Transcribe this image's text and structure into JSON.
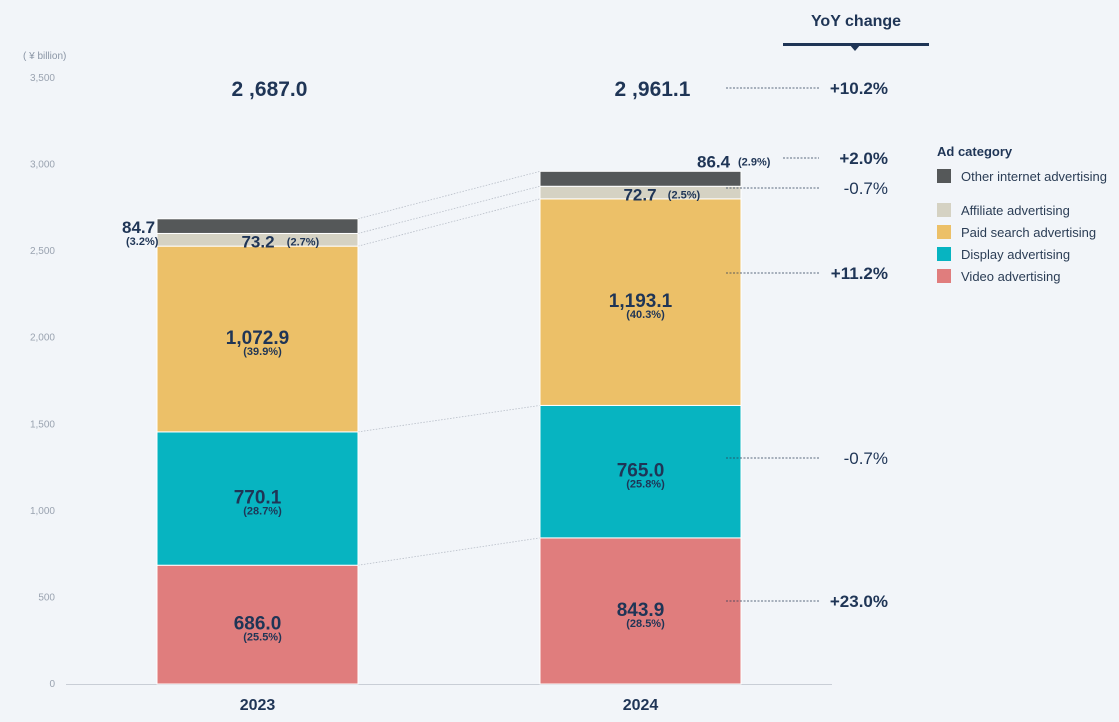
{
  "chart_data": {
    "type": "bar",
    "stacked": true,
    "unit_label": "( ¥ billion)",
    "ylim": [
      0,
      3500
    ],
    "yticks": [
      0,
      500,
      1000,
      1500,
      2000,
      2500,
      3000,
      3500
    ],
    "ytick_labels": [
      "0",
      "500",
      "1,000",
      "1,500",
      "2,000",
      "2,500",
      "3,000",
      "3,500"
    ],
    "categories": [
      "2023",
      "2024"
    ],
    "totals": [
      2687.0,
      2961.1
    ],
    "total_labels": [
      "2 ,687.0",
      "2 ,961.1"
    ],
    "series": [
      {
        "name": "Video advertising",
        "color": "#e07d7d",
        "values": [
          686.0,
          843.9
        ],
        "value_labels": [
          "686.0",
          "843.9"
        ],
        "share_labels": [
          "(25.5%)",
          "(28.5%)"
        ],
        "yoy": "+23.0%",
        "yoy_bold": true
      },
      {
        "name": "Display advertising",
        "color": "#07b4c1",
        "values": [
          770.1,
          765.0
        ],
        "value_labels": [
          "770.1",
          "765.0"
        ],
        "share_labels": [
          "(28.7%)",
          "(25.8%)"
        ],
        "yoy": "-0.7%",
        "yoy_bold": false
      },
      {
        "name": "Paid search advertising",
        "color": "#ecc068",
        "values": [
          1072.9,
          1193.1
        ],
        "value_labels": [
          "1,072.9",
          "1,193.1"
        ],
        "share_labels": [
          "(39.9%)",
          "(40.3%)"
        ],
        "yoy": "+11.2%",
        "yoy_bold": true
      },
      {
        "name": "Affiliate advertising",
        "color": "#d5d2c3",
        "values": [
          73.2,
          72.7
        ],
        "value_labels": [
          "73.2",
          "72.7"
        ],
        "share_labels": [
          "(2.7%)",
          "(2.5%)"
        ],
        "yoy": "-0.7%",
        "yoy_bold": false
      },
      {
        "name": "Other internet advertising",
        "color": "#555859",
        "values": [
          84.7,
          86.4
        ],
        "value_labels": [
          "84.7",
          "86.4"
        ],
        "share_labels": [
          "(3.2%)",
          "(2.9%)"
        ],
        "yoy": "+2.0%",
        "yoy_bold": true
      }
    ],
    "total_yoy": "+10.2%",
    "yoy_title": "YoY change",
    "legend_title": "Ad category",
    "legend_order": [
      "Other internet advertising",
      "Affiliate advertising",
      "Paid search advertising",
      "Display advertising",
      "Video advertising"
    ]
  }
}
